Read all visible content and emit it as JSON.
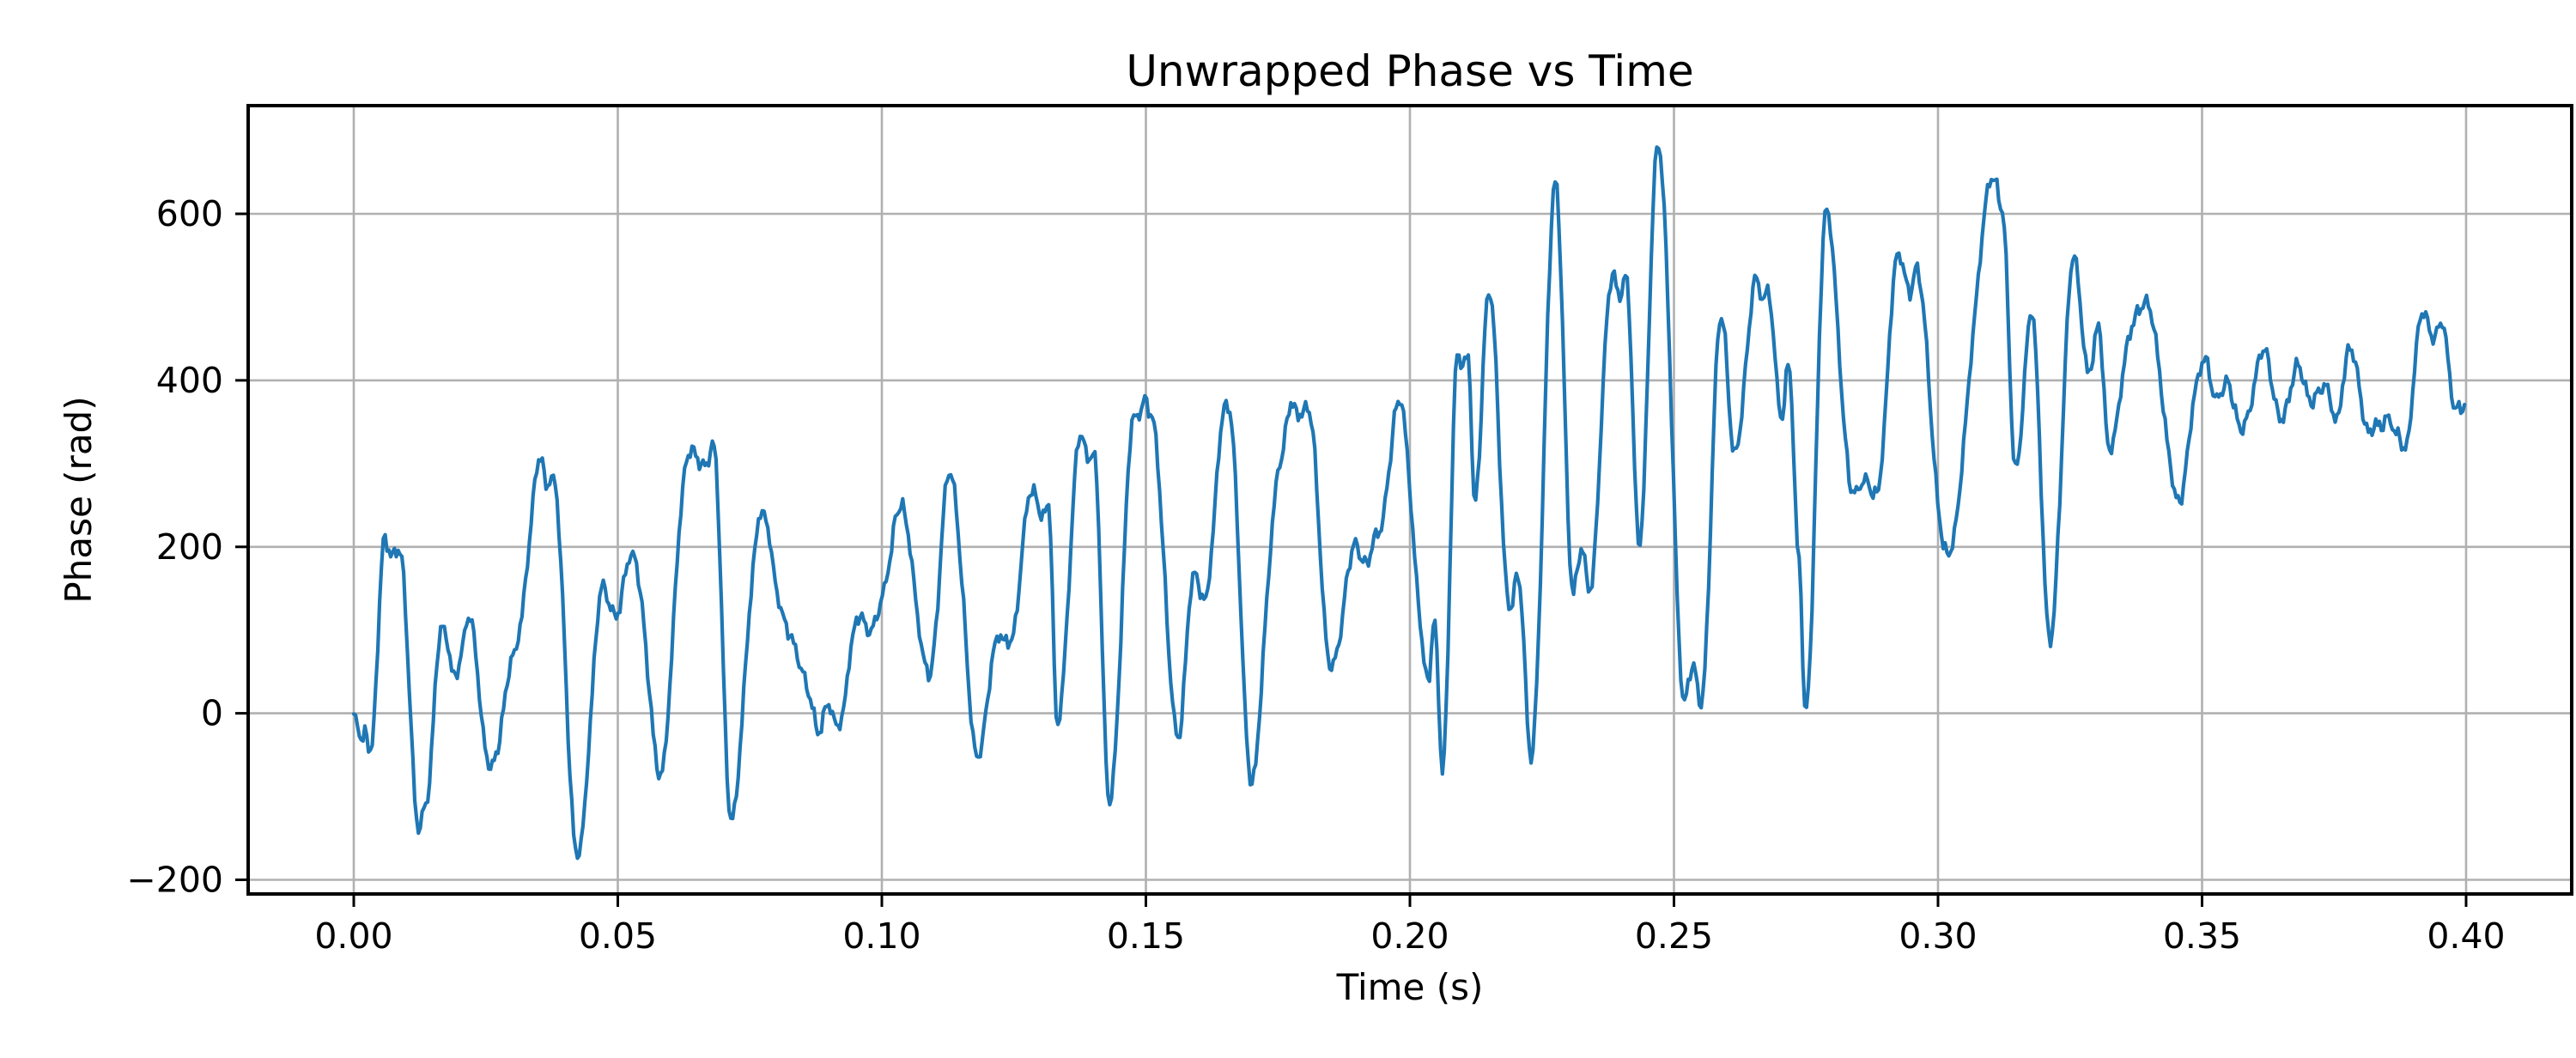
{
  "figure": {
    "background_color": "#ffffff"
  },
  "chart_data": {
    "type": "line",
    "title": "Unwrapped Phase vs Time",
    "xlabel": "Time (s)",
    "ylabel": "Phase (rad)",
    "xlim": [
      -0.02,
      0.42
    ],
    "ylim": [
      -217,
      730
    ],
    "grid": true,
    "legend": "none",
    "line_color": "#1f77b4",
    "grid_color": "#b0b0b0",
    "spine_color": "#000000",
    "xticks": {
      "values": [
        0.0,
        0.05,
        0.1,
        0.15,
        0.2,
        0.25,
        0.3,
        0.35,
        0.4
      ],
      "labels": [
        "0.00",
        "0.05",
        "0.10",
        "0.15",
        "0.20",
        "0.25",
        "0.30",
        "0.35",
        "0.40"
      ]
    },
    "yticks": {
      "values": [
        -200,
        0,
        200,
        400,
        600
      ],
      "labels": [
        "−200",
        "0",
        "200",
        "400",
        "600"
      ]
    },
    "series": [
      {
        "name": "unwrapped-phase",
        "anchors_t": [
          0.0,
          0.0008,
          0.0015,
          0.0022,
          0.0032,
          0.006,
          0.0072,
          0.0086,
          0.0125,
          0.0136,
          0.0165,
          0.019,
          0.022,
          0.026,
          0.03,
          0.0355,
          0.0366,
          0.0376,
          0.0425,
          0.047,
          0.0495,
          0.053,
          0.058,
          0.0635,
          0.066,
          0.068,
          0.0715,
          0.077,
          0.083,
          0.088,
          0.0897,
          0.0912,
          0.096,
          0.098,
          0.1038,
          0.1088,
          0.113,
          0.118,
          0.1225,
          0.1245,
          0.128,
          0.13,
          0.1316,
          0.1332,
          0.1375,
          0.139,
          0.1402,
          0.143,
          0.148,
          0.1496,
          0.1512,
          0.156,
          0.159,
          0.161,
          0.1655,
          0.17,
          0.1755,
          0.1776,
          0.181,
          0.185,
          0.1895,
          0.192,
          0.1938,
          0.198,
          0.2035,
          0.2046,
          0.2062,
          0.209,
          0.2101,
          0.2111,
          0.2122,
          0.215,
          0.219,
          0.2206,
          0.223,
          0.2275,
          0.231,
          0.2325,
          0.234,
          0.2385,
          0.2398,
          0.2409,
          0.2435,
          0.247,
          0.252,
          0.2536,
          0.2551,
          0.259,
          0.2616,
          0.2655,
          0.2668,
          0.2679,
          0.2705,
          0.2718,
          0.2736,
          0.2749,
          0.2788,
          0.284,
          0.2861,
          0.2881,
          0.2925,
          0.2946,
          0.2959,
          0.3016,
          0.3107,
          0.3121,
          0.3146,
          0.3177,
          0.3213,
          0.3256,
          0.3284,
          0.3304,
          0.3323,
          0.338,
          0.3401,
          0.3453,
          0.3505,
          0.3526,
          0.3546,
          0.3571,
          0.362,
          0.3651,
          0.3681,
          0.3701,
          0.3726,
          0.3751,
          0.3781,
          0.382,
          0.3851,
          0.3866,
          0.3882,
          0.392,
          0.3941,
          0.3953,
          0.3981,
          0.4
        ],
        "anchors_phase": [
          -5,
          -22,
          -38,
          -12,
          -45,
          213,
          195,
          192,
          -138,
          -118,
          103,
          50,
          108,
          -73,
          60,
          298,
          280,
          288,
          -172,
          147,
          122,
          192,
          -70,
          318,
          297,
          324,
          -120,
          237,
          85,
          -15,
          12,
          -18,
          118,
          98,
          245,
          45,
          290,
          -45,
          98,
          82,
          266,
          240,
          254,
          -20,
          330,
          305,
          315,
          -102,
          362,
          372,
          350,
          -30,
          158,
          140,
          380,
          -73,
          300,
          372,
          355,
          50,
          195,
          188,
          213,
          372,
          40,
          118,
          -70,
          438,
          415,
          420,
          258,
          504,
          120,
          168,
          -55,
          630,
          145,
          190,
          152,
          533,
          500,
          522,
          210,
          690,
          22,
          48,
          18,
          477,
          305,
          522,
          492,
          508,
          350,
          422,
          200,
          -5,
          597,
          258,
          288,
          255,
          545,
          515,
          528,
          190,
          647,
          615,
          290,
          477,
          87,
          550,
          415,
          460,
          325,
          490,
          480,
          258,
          430,
          370,
          404,
          340,
          432,
          347,
          420,
          374,
          396,
          358,
          432,
          335,
          360,
          330,
          320,
          480,
          453,
          466,
          368,
          363
        ]
      }
    ],
    "noise": {
      "sample_dt": 0.00035,
      "seed": 7.31,
      "jitter_amp": 6,
      "components": [
        {
          "amp": 7,
          "freq": 233,
          "phase": 0.9
        },
        {
          "amp": 5,
          "freq": 527,
          "phase": 2.1
        },
        {
          "amp": 4,
          "freq": 1130,
          "phase": 4.4
        }
      ]
    }
  }
}
